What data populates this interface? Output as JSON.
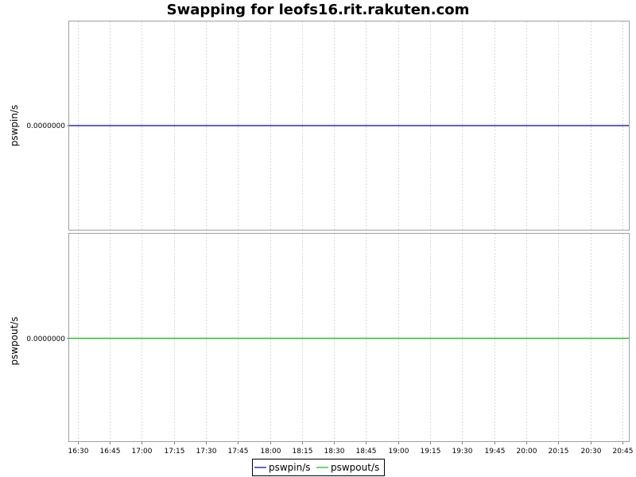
{
  "chart_data": {
    "type": "line",
    "title": "Swapping for leofs16.rit.rakuten.com",
    "x_ticks": [
      "16:30",
      "16:45",
      "17:00",
      "17:15",
      "17:30",
      "17:45",
      "18:00",
      "18:15",
      "18:30",
      "18:45",
      "19:00",
      "19:15",
      "19:30",
      "19:45",
      "20:00",
      "20:15",
      "20:30",
      "20:45"
    ],
    "x_range": [
      "16:26",
      "20:48"
    ],
    "grid": true,
    "legend_position": "bottom-center",
    "panels": [
      {
        "ylabel": "pswpin/s",
        "y_tick": "0.0000000",
        "series": {
          "name": "pswpin/s",
          "color": "#0000a0",
          "x": [
            "16:26",
            "20:48"
          ],
          "values": [
            0,
            0
          ]
        }
      },
      {
        "ylabel": "pswpout/s",
        "y_tick": "0.0000000",
        "series": {
          "name": "pswpout/s",
          "color": "#00c000",
          "x": [
            "16:26",
            "20:48"
          ],
          "values": [
            0,
            0
          ]
        }
      }
    ],
    "legend": [
      {
        "label": "pswpin/s",
        "color": "#0000a0"
      },
      {
        "label": "pswpout/s",
        "color": "#00c000"
      }
    ]
  }
}
